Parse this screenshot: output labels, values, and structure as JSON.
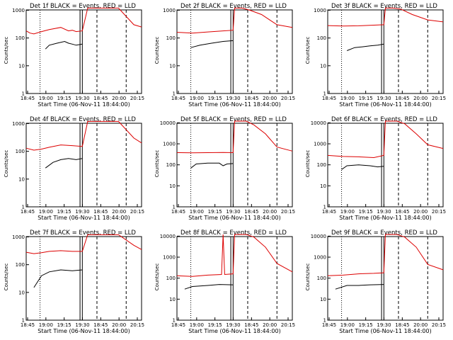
{
  "title": "Det 1f BLACK = Events, RED = LLD",
  "panels": [
    {
      "id": "1",
      "title": "Det 1f BLACK = Events, RED = LLD",
      "xlabel": "Start Time (06-Nov-11 18:44:00)",
      "ylabel": "Counts/sec",
      "xticks": [
        "18:45",
        "19:00",
        "19:15",
        "19:30",
        "18:45",
        "20:00",
        "20:15"
      ],
      "yticks": [
        "1",
        "10",
        "100",
        "1000"
      ],
      "black": {
        "type": "line",
        "x": [
          25,
          30,
          40,
          50,
          55,
          60,
          65,
          73
        ],
        "y": [
          40,
          55,
          65,
          75,
          65,
          60,
          55,
          60
        ]
      },
      "red": {
        "type": "line",
        "x": [
          0,
          5,
          10,
          20,
          30,
          45,
          55,
          60,
          65,
          73,
          80,
          120,
          140,
          150
        ],
        "y": [
          180,
          150,
          140,
          170,
          200,
          240,
          180,
          190,
          170,
          180,
          1200,
          1200,
          300,
          250
        ]
      }
    },
    {
      "id": "2",
      "title": "Det 2f BLACK = Events, RED = LLD",
      "xlabel": "Start Time (06-Nov-11 18:44:00)",
      "ylabel": "Counts/sec",
      "xticks": [
        "18:45",
        "19:00",
        "19:15",
        "19:30",
        "18:45",
        "20:00",
        "20:15"
      ],
      "yticks": [
        "1",
        "10",
        "100",
        "1000"
      ],
      "black": {
        "type": "line",
        "x": [
          18,
          30,
          45,
          60,
          73
        ],
        "y": [
          45,
          55,
          65,
          75,
          80
        ]
      },
      "red": {
        "type": "line",
        "x": [
          0,
          20,
          40,
          60,
          73,
          75,
          85,
          95,
          110,
          130,
          150
        ],
        "y": [
          160,
          150,
          165,
          180,
          190,
          1200,
          1200,
          1000,
          700,
          300,
          240
        ]
      }
    },
    {
      "id": "3",
      "title": "Det 3f BLACK = Events, RED = LLD",
      "xlabel": "Start Time (06-Nov-11 18:44:00)",
      "ylabel": "Counts/sec",
      "xticks": [
        "18:45",
        "19:00",
        "19:15",
        "19:30",
        "18:45",
        "20:00",
        "20:15"
      ],
      "yticks": [
        "1",
        "10",
        "100",
        "1000"
      ],
      "black": {
        "type": "line",
        "x": [
          25,
          35,
          45,
          55,
          65,
          73
        ],
        "y": [
          35,
          45,
          48,
          52,
          55,
          60
        ]
      },
      "red": {
        "type": "line",
        "x": [
          0,
          20,
          40,
          60,
          73,
          75,
          85,
          95,
          110,
          130,
          150
        ],
        "y": [
          280,
          270,
          275,
          290,
          300,
          1200,
          1200,
          1100,
          700,
          450,
          380
        ]
      }
    },
    {
      "id": "4",
      "title": "Det 4f BLACK = Events, RED = LLD",
      "xlabel": "Start Time (06-Nov-11 18:44:00)",
      "ylabel": "Counts/sec",
      "xticks": [
        "18:45",
        "19:00",
        "19:15",
        "19:30",
        "18:45",
        "20:00",
        "20:15"
      ],
      "yticks": [
        "1",
        "10",
        "100",
        "1000"
      ],
      "black": {
        "type": "line",
        "x": [
          25,
          35,
          45,
          55,
          65,
          73
        ],
        "y": [
          25,
          40,
          50,
          55,
          50,
          55
        ]
      },
      "red": {
        "type": "line",
        "x": [
          0,
          10,
          20,
          30,
          45,
          60,
          73,
          80,
          120,
          140,
          150
        ],
        "y": [
          130,
          110,
          120,
          140,
          170,
          160,
          150,
          1200,
          1200,
          300,
          200
        ]
      }
    },
    {
      "id": "5",
      "title": "Det 5f BLACK = Events, RED = LLD",
      "xlabel": "Start Time (06-Nov-11 18:44:00)",
      "ylabel": "Counts/sec",
      "xticks": [
        "18:45",
        "19:00",
        "19:15",
        "19:30",
        "18:45",
        "20:00",
        "20:15"
      ],
      "yticks": [
        "1",
        "10",
        "100",
        "1000",
        "10000"
      ],
      "black": {
        "type": "line",
        "x": [
          18,
          25,
          40,
          55,
          60,
          65,
          73
        ],
        "y": [
          70,
          110,
          120,
          120,
          90,
          110,
          115
        ]
      },
      "red": {
        "type": "line",
        "x": [
          0,
          20,
          40,
          60,
          73,
          75,
          90,
          100,
          115,
          130,
          150
        ],
        "y": [
          380,
          375,
          380,
          390,
          380,
          12000,
          12000,
          8000,
          3000,
          700,
          450
        ]
      }
    },
    {
      "id": "6",
      "title": "Det 6f BLACK = Events, RED = LLD",
      "xlabel": "Start Time (06-Nov-11 18:44:00)",
      "ylabel": "Counts/sec",
      "xticks": [
        "18:45",
        "19:00",
        "19:15",
        "19:30",
        "18:45",
        "20:00",
        "20:15"
      ],
      "yticks": [
        "1",
        "10",
        "100",
        "1000",
        "10000"
      ],
      "black": {
        "type": "line",
        "x": [
          18,
          25,
          40,
          55,
          65,
          73
        ],
        "y": [
          60,
          90,
          100,
          90,
          80,
          85
        ]
      },
      "red": {
        "type": "line",
        "x": [
          0,
          20,
          40,
          60,
          73,
          75,
          90,
          100,
          115,
          130,
          150
        ],
        "y": [
          280,
          250,
          240,
          220,
          280,
          12000,
          12000,
          9000,
          3000,
          900,
          600
        ]
      }
    },
    {
      "id": "7",
      "title": "Det 7f BLACK = Events, RED = LLD",
      "xlabel": "Start Time (06-Nov-11 18:44:00)",
      "ylabel": "Counts/sec",
      "xticks": [
        "18:45",
        "19:00",
        "19:15",
        "19:30",
        "18:45",
        "20:00",
        "20:15"
      ],
      "yticks": [
        "1",
        "10",
        "100",
        "1000"
      ],
      "black": {
        "type": "line",
        "x": [
          10,
          20,
          30,
          45,
          60,
          73
        ],
        "y": [
          15,
          40,
          55,
          65,
          60,
          65
        ]
      },
      "red": {
        "type": "line",
        "x": [
          0,
          10,
          20,
          30,
          45,
          60,
          73,
          80,
          120,
          140,
          150
        ],
        "y": [
          280,
          250,
          270,
          300,
          320,
          300,
          300,
          1200,
          1200,
          500,
          350
        ]
      }
    },
    {
      "id": "8",
      "title": "Det 8f BLACK = Events, RED = LLD",
      "xlabel": "Start Time (06-Nov-11 18:44:00)",
      "ylabel": "Counts/sec",
      "xticks": [
        "18:45",
        "19:00",
        "19:15",
        "19:30",
        "18:45",
        "20:00",
        "20:15"
      ],
      "yticks": [
        "1",
        "10",
        "100",
        "1000",
        "10000"
      ],
      "black": {
        "type": "line",
        "x": [
          10,
          20,
          40,
          55,
          73
        ],
        "y": [
          30,
          40,
          45,
          50,
          48
        ]
      },
      "red": {
        "type": "line",
        "x": [
          0,
          20,
          40,
          58,
          60,
          62,
          73,
          75,
          90,
          100,
          115,
          130,
          150
        ],
        "y": [
          130,
          120,
          140,
          150,
          12000,
          150,
          160,
          12000,
          12000,
          9000,
          3000,
          500,
          200
        ]
      }
    },
    {
      "id": "9",
      "title": "Det 9f BLACK = Events, RED = LLD",
      "xlabel": "Start Time (06-Nov-11 18:44:00)",
      "ylabel": "Counts/sec",
      "xticks": [
        "18:45",
        "19:00",
        "19:15",
        "19:30",
        "18:45",
        "20:00",
        "20:15"
      ],
      "yticks": [
        "1",
        "10",
        "100",
        "1000",
        "10000"
      ],
      "black": {
        "type": "line",
        "x": [
          10,
          25,
          40,
          55,
          73
        ],
        "y": [
          30,
          45,
          45,
          48,
          50
        ]
      },
      "red": {
        "type": "line",
        "x": [
          0,
          20,
          40,
          60,
          73,
          75,
          90,
          100,
          115,
          130,
          150
        ],
        "y": [
          130,
          140,
          160,
          170,
          180,
          12000,
          12000,
          9000,
          3000,
          450,
          250
        ]
      }
    }
  ],
  "chart_data": [
    {
      "type": "line",
      "title": "Det 1f BLACK = Events, RED = LLD",
      "xlabel": "Start Time (06-Nov-11 18:44:00)",
      "ylabel": "Counts/sec",
      "yscale": "log",
      "ylim": [
        1,
        1200
      ],
      "xlim": [
        0,
        150
      ],
      "series": []
    }
  ],
  "colors": {
    "events": "#000000",
    "lld": "#dd0000",
    "background": "#ffffff",
    "axis": "#000000"
  }
}
